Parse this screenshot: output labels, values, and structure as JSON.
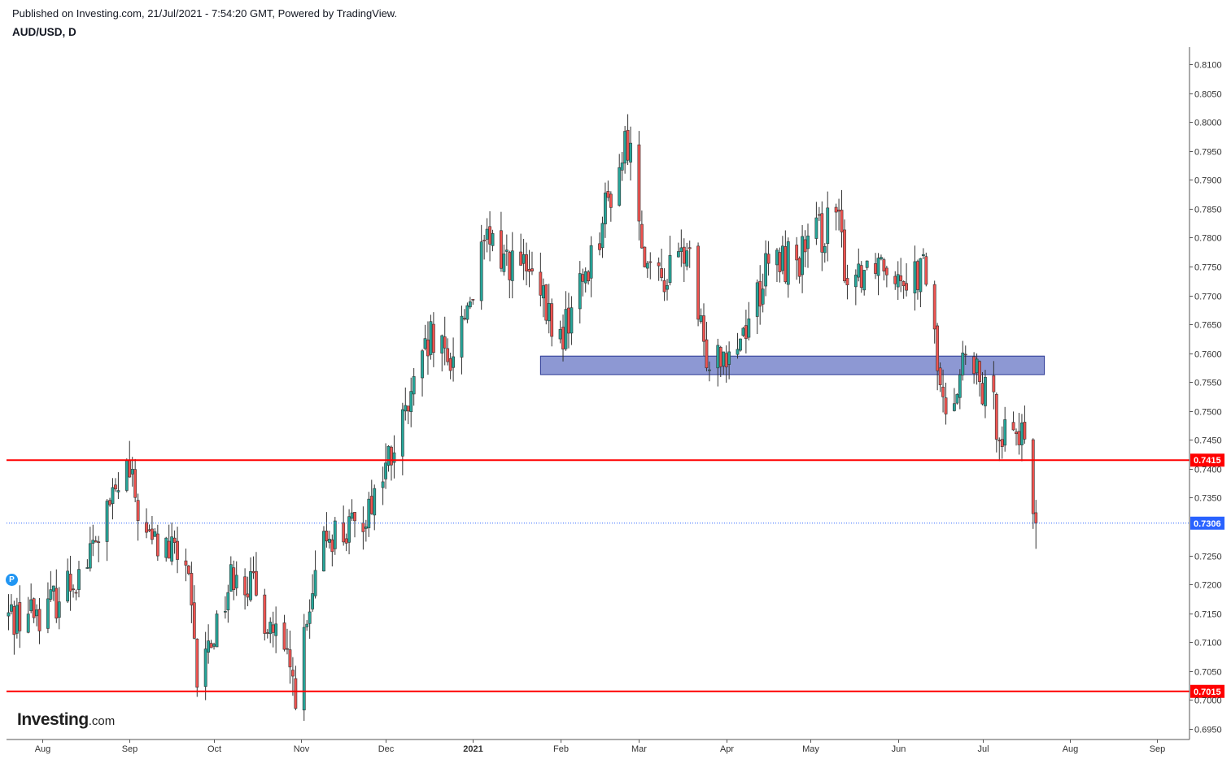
{
  "header": {
    "published": "Published on Investing.com, 21/Jul/2021 - 7:54:20 GMT, Powered by TradingView.",
    "symbol": "AUD/USD, D"
  },
  "logo": {
    "name": "Investing",
    "suffix": ".com"
  },
  "badge": "P",
  "colors": {
    "up": "#26a69a",
    "down": "#ef5350",
    "line": "#ff0000",
    "zone": "#5c6bc0",
    "last": "#2962ff"
  },
  "chart_data": {
    "type": "candlestick",
    "symbol": "AUD/USD",
    "timeframe": "D",
    "y_axis": {
      "range": [
        0.6925,
        0.8125
      ],
      "ticks": [
        "0.8100",
        "0.8050",
        "0.8000",
        "0.7950",
        "0.7900",
        "0.7850",
        "0.7800",
        "0.7750",
        "0.7700",
        "0.7650",
        "0.7600",
        "0.7550",
        "0.7500",
        "0.7450",
        "0.7400",
        "0.7350",
        "0.7250",
        "0.7200",
        "0.7150",
        "0.7100",
        "0.7050",
        "0.7000",
        "0.6950"
      ]
    },
    "x_axis": {
      "ticks": [
        {
          "label": "Aug",
          "date": "2020-08-01"
        },
        {
          "label": "Sep",
          "date": "2020-09-01"
        },
        {
          "label": "Oct",
          "date": "2020-10-01"
        },
        {
          "label": "Nov",
          "date": "2020-11-01"
        },
        {
          "label": "Dec",
          "date": "2020-12-01"
        },
        {
          "label": "2021",
          "date": "2021-01-01",
          "bold": true
        },
        {
          "label": "Feb",
          "date": "2021-02-01"
        },
        {
          "label": "Mar",
          "date": "2021-03-01"
        },
        {
          "label": "Apr",
          "date": "2021-04-01"
        },
        {
          "label": "May",
          "date": "2021-05-01"
        },
        {
          "label": "Jun",
          "date": "2021-06-01"
        },
        {
          "label": "Jul",
          "date": "2021-07-01"
        },
        {
          "label": "Aug",
          "date": "2021-08-01"
        },
        {
          "label": "Sep",
          "date": "2021-09-01"
        }
      ]
    },
    "horizontal_lines": [
      {
        "value": 0.7415,
        "label": "0.7415",
        "color": "#ff0000"
      },
      {
        "value": 0.7015,
        "label": "0.7015",
        "color": "#ff0000"
      }
    ],
    "last_price": {
      "value": 0.7306,
      "label": "0.7306"
    },
    "zone": {
      "from": "2021-01-25",
      "to": "2021-07-23",
      "low": 0.7563,
      "high": 0.7595
    },
    "swing_path": [
      {
        "date": "2020-07-20",
        "close": 0.7145
      },
      {
        "date": "2020-08-03",
        "close": 0.716
      },
      {
        "date": "2020-08-17",
        "close": 0.724
      },
      {
        "date": "2020-08-31",
        "close": 0.74
      },
      {
        "date": "2020-09-07",
        "close": 0.728
      },
      {
        "date": "2020-09-21",
        "close": 0.724
      },
      {
        "date": "2020-09-25",
        "close": 0.703
      },
      {
        "date": "2020-10-09",
        "close": 0.724
      },
      {
        "date": "2020-10-22",
        "close": 0.712
      },
      {
        "date": "2020-10-30",
        "close": 0.702
      },
      {
        "date": "2020-11-10",
        "close": 0.729
      },
      {
        "date": "2020-11-20",
        "close": 0.729
      },
      {
        "date": "2020-12-04",
        "close": 0.743
      },
      {
        "date": "2020-12-17",
        "close": 0.762
      },
      {
        "date": "2020-12-23",
        "close": 0.758
      },
      {
        "date": "2021-01-06",
        "close": 0.779
      },
      {
        "date": "2021-01-20",
        "close": 0.774
      },
      {
        "date": "2021-02-01",
        "close": 0.762
      },
      {
        "date": "2021-02-12",
        "close": 0.777
      },
      {
        "date": "2021-02-25",
        "close": 0.797
      },
      {
        "date": "2021-03-05",
        "close": 0.772
      },
      {
        "date": "2021-03-12",
        "close": 0.774
      },
      {
        "date": "2021-03-18",
        "close": 0.778
      },
      {
        "date": "2021-03-24",
        "close": 0.76
      },
      {
        "date": "2021-04-05",
        "close": 0.762
      },
      {
        "date": "2021-04-16",
        "close": 0.775
      },
      {
        "date": "2021-04-28",
        "close": 0.777
      },
      {
        "date": "2021-05-10",
        "close": 0.784
      },
      {
        "date": "2021-05-14",
        "close": 0.773
      },
      {
        "date": "2021-05-25",
        "close": 0.777
      },
      {
        "date": "2021-06-04",
        "close": 0.774
      },
      {
        "date": "2021-06-11",
        "close": 0.774
      },
      {
        "date": "2021-06-17",
        "close": 0.75
      },
      {
        "date": "2021-06-25",
        "close": 0.759
      },
      {
        "date": "2021-07-08",
        "close": 0.747
      },
      {
        "date": "2021-07-14",
        "close": 0.747
      },
      {
        "date": "2021-07-20",
        "close": 0.7306
      }
    ]
  }
}
